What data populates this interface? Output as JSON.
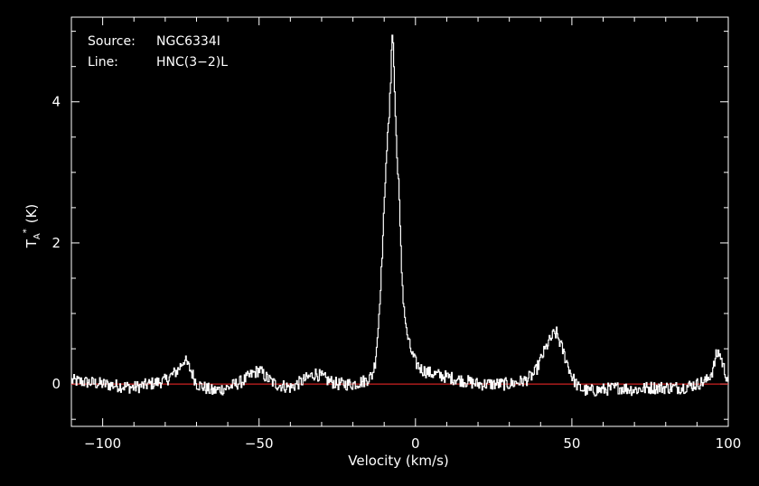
{
  "chart_data": {
    "type": "line",
    "source_label": "Source:",
    "source_value": "NGC6334I",
    "line_label": "Line:",
    "line_value": "HNC(3−2)L",
    "xlabel": "Velocity (km/s)",
    "ylabel_main": "T",
    "ylabel_sub": "A",
    "ylabel_sup": "*",
    "ylabel_unit": "(K)",
    "xlim": [
      -110,
      100
    ],
    "ylim": [
      -0.6,
      5.2
    ],
    "xticks": [
      -100,
      -50,
      0,
      50,
      100
    ],
    "xtick_labels": [
      "−100",
      "−50",
      "0",
      "50",
      "100"
    ],
    "yticks": [
      0,
      2,
      4
    ],
    "ytick_labels": [
      "0",
      "2",
      "4"
    ],
    "baseline": 0,
    "series": [
      {
        "x": [
          -110,
          -100,
          -90,
          -80,
          -76,
          -74,
          -72,
          -70,
          -65,
          -60,
          -55,
          -52,
          -50,
          -48,
          -45,
          -40,
          -36,
          -32,
          -30,
          -28,
          -25,
          -20,
          -16,
          -14,
          -13,
          -12,
          -11,
          -10,
          -9.5,
          -9,
          -8.5,
          -8,
          -7.7,
          -7.4,
          -7,
          -6.5,
          -6,
          -5.5,
          -5,
          -4.5,
          -4,
          -3,
          -2,
          -1,
          0,
          2,
          5,
          8,
          12,
          15,
          20,
          25,
          30,
          35,
          38,
          40,
          42,
          44,
          45,
          46,
          48,
          50,
          52,
          55,
          60,
          65,
          70,
          75,
          80,
          85,
          90,
          93,
          95,
          96,
          97,
          98,
          99,
          100
        ],
        "y": [
          0.05,
          0.0,
          -0.05,
          0.05,
          0.2,
          0.35,
          0.2,
          0.0,
          -0.1,
          -0.05,
          0.05,
          0.15,
          0.2,
          0.1,
          0.0,
          -0.05,
          0.05,
          0.15,
          0.1,
          0.05,
          0.0,
          0.0,
          0.05,
          0.12,
          0.3,
          0.8,
          1.6,
          2.6,
          3.2,
          3.5,
          3.8,
          4.3,
          4.9,
          5.0,
          4.5,
          3.8,
          3.2,
          2.9,
          2.2,
          1.6,
          1.2,
          0.75,
          0.55,
          0.4,
          0.3,
          0.2,
          0.15,
          0.12,
          0.08,
          0.05,
          0.0,
          0.0,
          0.0,
          0.05,
          0.15,
          0.35,
          0.55,
          0.7,
          0.72,
          0.6,
          0.35,
          0.1,
          -0.05,
          -0.1,
          -0.08,
          -0.05,
          -0.08,
          -0.05,
          -0.05,
          -0.05,
          0.0,
          0.05,
          0.2,
          0.4,
          0.45,
          0.3,
          0.15,
          0.05
        ]
      }
    ],
    "colors": {
      "spectrum": "#ffffff",
      "baseline": "#ff2a2a",
      "axes": "#ffffff",
      "background": "#000000"
    }
  }
}
